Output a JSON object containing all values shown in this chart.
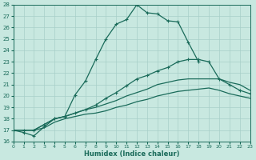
{
  "xlabel": "Humidex (Indice chaleur)",
  "ylabel": "",
  "bg_color": "#c8e8e0",
  "line_color": "#1a6b5a",
  "grid_color": "#a8cfc8",
  "ylim": [
    16,
    28
  ],
  "xlim": [
    0,
    23
  ],
  "yticks": [
    16,
    17,
    18,
    19,
    20,
    21,
    22,
    23,
    24,
    25,
    26,
    27,
    28
  ],
  "xticks": [
    0,
    1,
    2,
    3,
    4,
    5,
    6,
    7,
    8,
    9,
    10,
    11,
    12,
    13,
    14,
    15,
    16,
    17,
    18,
    19,
    20,
    21,
    22,
    23
  ],
  "curve1_x": [
    0,
    1,
    2,
    3,
    4,
    5,
    6,
    7,
    8,
    9,
    10,
    11,
    12,
    13,
    14,
    15,
    16,
    17,
    18,
    19,
    20,
    21,
    22,
    23
  ],
  "curve1_y": [
    17.0,
    16.8,
    16.5,
    17.3,
    18.0,
    18.2,
    20.1,
    21.3,
    23.2,
    25.0,
    26.3,
    26.7,
    28.0,
    27.3,
    27.2,
    26.6,
    26.5,
    24.7,
    23.0,
    null,
    null,
    null,
    null,
    null
  ],
  "curve2_x": [
    0,
    1,
    2,
    3,
    4,
    5,
    6,
    7,
    8,
    9,
    10,
    11,
    12,
    13,
    14,
    15,
    16,
    17,
    18,
    19,
    20,
    21,
    22,
    23
  ],
  "curve2_y": [
    17.0,
    17.0,
    17.0,
    17.5,
    18.0,
    18.2,
    18.5,
    18.8,
    19.2,
    19.8,
    20.3,
    20.9,
    21.5,
    21.8,
    22.2,
    22.5,
    23.0,
    23.2,
    23.2,
    23.0,
    21.5,
    21.0,
    20.5,
    20.2
  ],
  "curve3_x": [
    0,
    1,
    2,
    3,
    4,
    5,
    6,
    7,
    8,
    9,
    10,
    11,
    12,
    13,
    14,
    15,
    16,
    17,
    18,
    19,
    20,
    21,
    22,
    23
  ],
  "curve3_y": [
    17.0,
    17.0,
    17.0,
    17.5,
    18.0,
    18.2,
    18.5,
    18.8,
    19.0,
    19.3,
    19.6,
    20.0,
    20.3,
    20.6,
    21.0,
    21.2,
    21.4,
    21.5,
    21.5,
    21.5,
    21.5,
    21.2,
    21.0,
    20.5
  ],
  "curve4_x": [
    0,
    1,
    2,
    3,
    4,
    5,
    6,
    7,
    8,
    9,
    10,
    11,
    12,
    13,
    14,
    15,
    16,
    17,
    18,
    19,
    20,
    21,
    22,
    23
  ],
  "curve4_y": [
    17.0,
    17.0,
    17.0,
    17.2,
    17.7,
    18.0,
    18.2,
    18.4,
    18.5,
    18.7,
    19.0,
    19.2,
    19.5,
    19.7,
    20.0,
    20.2,
    20.4,
    20.5,
    20.6,
    20.7,
    20.5,
    20.2,
    20.0,
    19.8
  ]
}
